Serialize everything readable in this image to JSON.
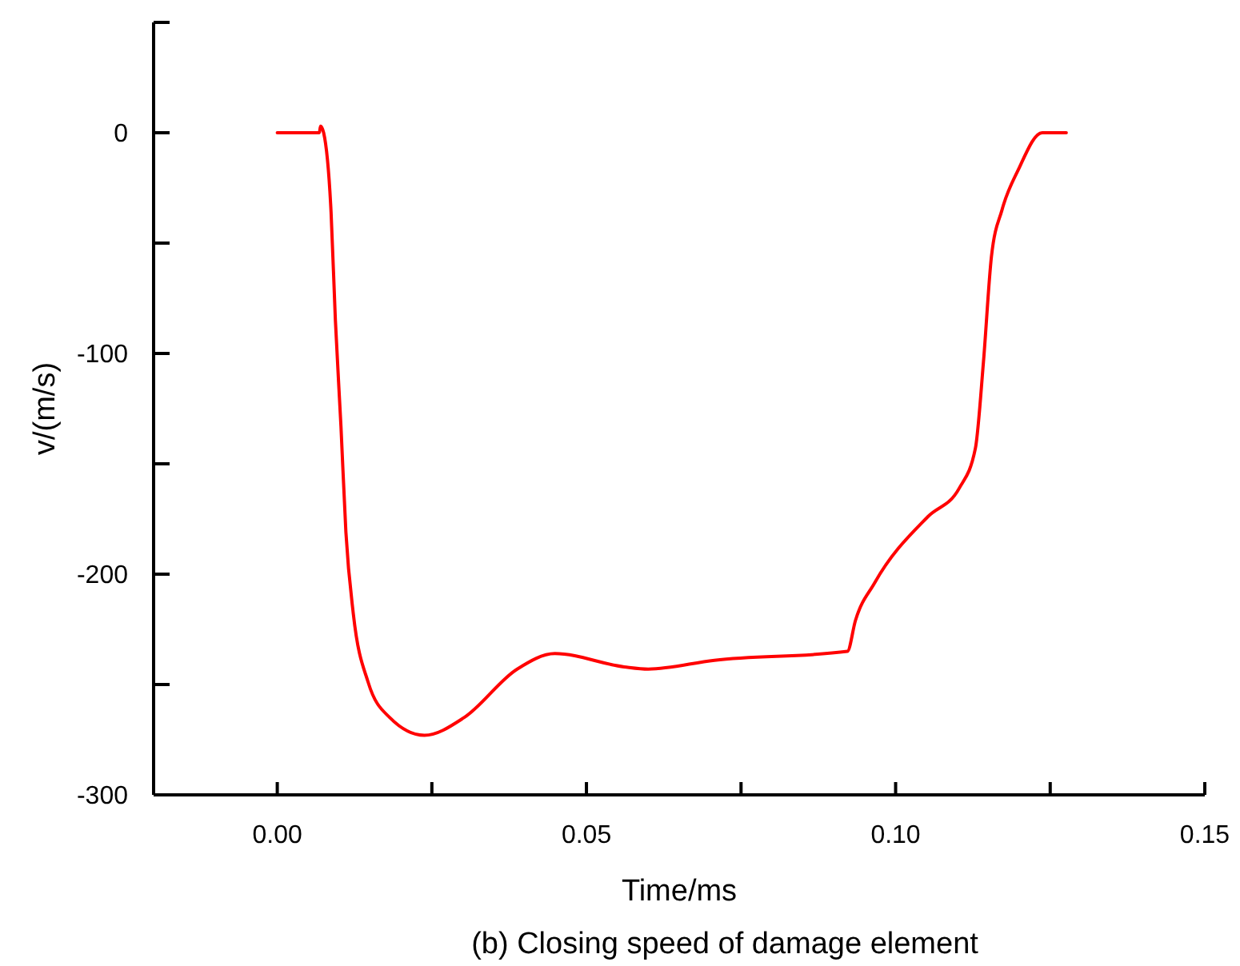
{
  "chart_data": {
    "type": "line",
    "title": "(b) Closing speed of damage element",
    "xlabel": "Time/ms",
    "ylabel": "v/(m/s)",
    "xlim": [
      -0.02,
      0.15
    ],
    "ylim": [
      -300,
      50
    ],
    "xticks": [
      {
        "value": 0,
        "label": "0.00"
      },
      {
        "value": 0.025,
        "label": null
      },
      {
        "value": 0.05,
        "label": "0.05"
      },
      {
        "value": 0.075,
        "label": null
      },
      {
        "value": 0.1,
        "label": "0.10"
      },
      {
        "value": 0.125,
        "label": null
      },
      {
        "value": 0.15,
        "label": "0.15"
      }
    ],
    "yticks": [
      {
        "value": 50,
        "label": null
      },
      0,
      {
        "value": -50,
        "label": null
      },
      -100,
      {
        "value": -150,
        "label": null
      },
      -200,
      {
        "value": -250,
        "label": null
      },
      -300
    ],
    "grid": false,
    "marker": "none",
    "line_style": "solid",
    "series": [
      {
        "color": "#ff0000",
        "x": [
          0,
          0.0068,
          0.007,
          0.0075,
          0.0087,
          0.0094,
          0.0103,
          0.0111,
          0.0123,
          0.0147,
          0.0182,
          0.0238,
          0.0302,
          0.0388,
          0.0449,
          0.0561,
          0.06,
          0.0707,
          0.0922,
          0.0935,
          0.0966,
          0.1052,
          0.1103,
          0.1129,
          0.1142,
          0.1155,
          0.1172,
          0.1198,
          0.1237,
          0.1276
        ],
        "values": [
          0,
          0,
          3,
          0,
          -36,
          -85,
          -133,
          -181,
          -218,
          -249,
          -265,
          -273,
          -265,
          -243,
          -236,
          -242,
          -243,
          -239,
          -235,
          -221,
          -204,
          -174,
          -161,
          -143,
          -104,
          -56,
          -35,
          -17,
          0,
          0
        ]
      }
    ]
  }
}
